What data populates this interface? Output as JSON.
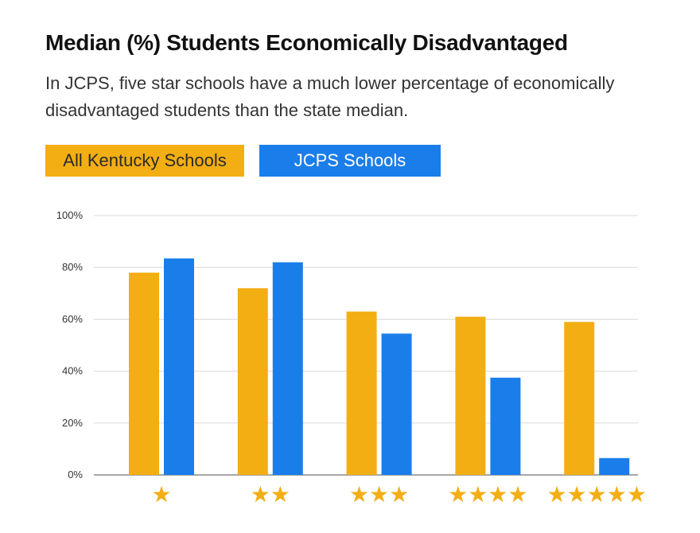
{
  "chart_data": {
    "type": "bar",
    "title": "Median (%) Students Economically Disadvantaged",
    "subtitle": "In JCPS, five star schools have a much lower percentage of economically disadvantaged students than the state median.",
    "categories": [
      "★",
      "★★",
      "★★★",
      "★★★★",
      "★★★★★"
    ],
    "series": [
      {
        "name": "All Kentucky Schools",
        "color": "#F3AE14",
        "values": [
          78,
          72,
          63,
          61,
          59
        ]
      },
      {
        "name": "JCPS Schools",
        "color": "#1A7EEA",
        "values": [
          83.5,
          82,
          54.5,
          37.5,
          6.5
        ]
      }
    ],
    "yticks": [
      "0%",
      "20%",
      "40%",
      "60%",
      "80%",
      "100%"
    ],
    "ylim": [
      0,
      100
    ],
    "grid": true,
    "legend_position": "top-left"
  }
}
